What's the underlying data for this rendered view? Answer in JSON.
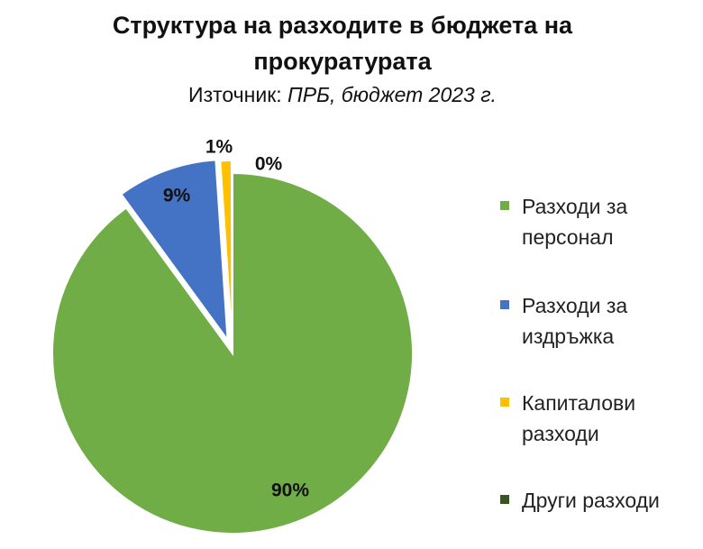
{
  "chart_data": {
    "type": "pie",
    "title_line1": "Структура на разходите в бюджета на",
    "title_line2": "прокуратурата",
    "subtitle_prefix": "Източник: ",
    "subtitle_source": "ПРБ, бюджет 2023 г.",
    "categories": [
      "Разходи за персонал",
      "Разходи за издръжка",
      "Капиталови разходи",
      "Други разходи"
    ],
    "values": [
      90,
      9,
      1,
      0.05
    ],
    "data_labels": [
      "90%",
      "9%",
      "1%",
      "0%"
    ],
    "colors": [
      "#70ad47",
      "#4472c4",
      "#ffc000",
      "#375623"
    ],
    "legend_lines": [
      [
        "Разходи за",
        "персонал"
      ],
      [
        "Разходи за",
        "издръжка"
      ],
      [
        "Капиталови",
        "разходи"
      ],
      [
        "Други разходи"
      ]
    ],
    "legend_position": "right",
    "exploded": true
  }
}
